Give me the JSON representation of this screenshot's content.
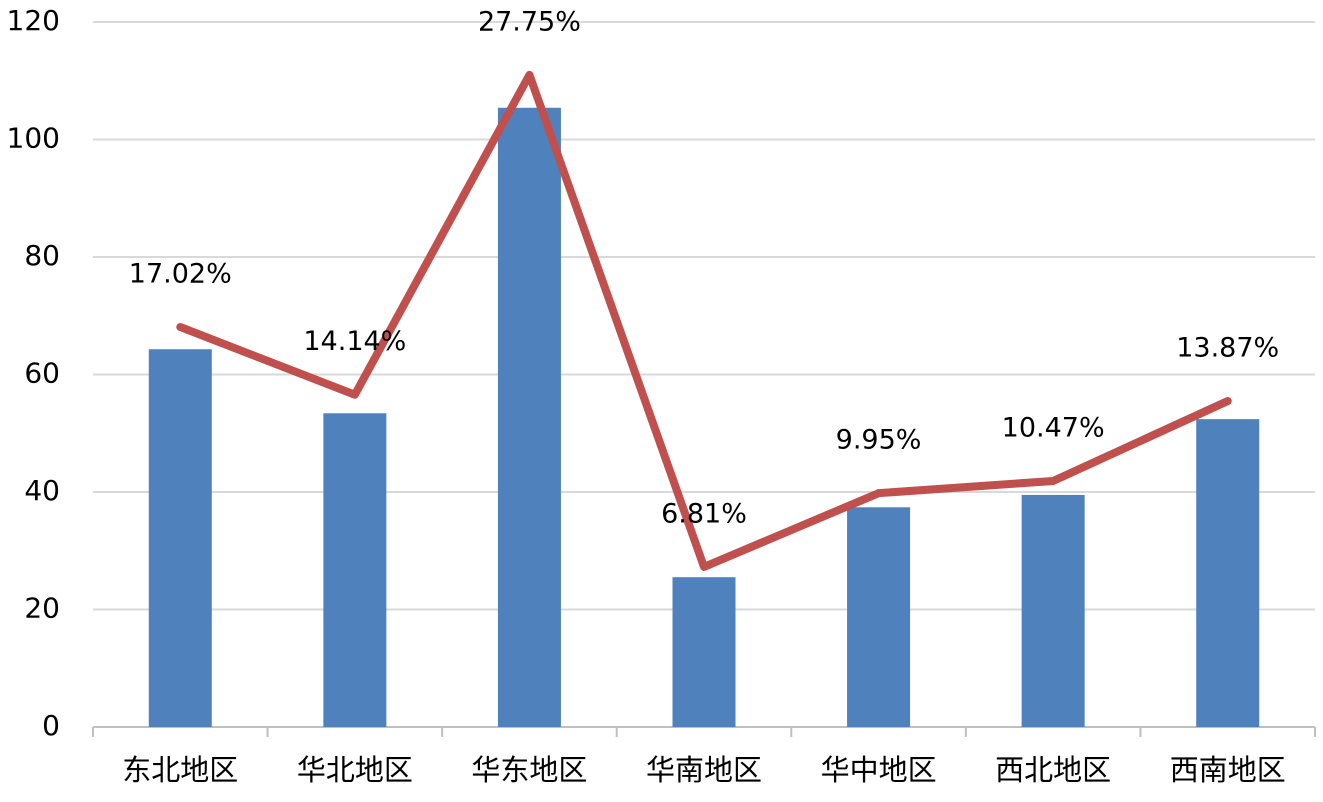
{
  "chart_data": {
    "type": "bar-line",
    "categories": [
      "东北地区",
      "华北地区",
      "华东地区",
      "华南地区",
      "华中地区",
      "西北地区",
      "西南地区"
    ],
    "series": [
      {
        "type": "bar",
        "color": "#4f81bd",
        "values": [
          64.3,
          53.4,
          105.4,
          25.5,
          37.4,
          39.5,
          52.4
        ]
      },
      {
        "type": "line",
        "color": "#c0504d",
        "axis": "y2",
        "values": [
          17.02,
          14.14,
          27.75,
          6.81,
          9.95,
          10.47,
          13.87
        ],
        "value_labels": [
          "17.02%",
          "14.14%",
          "27.75%",
          "6.81%",
          "9.95%",
          "10.47%",
          "13.87%"
        ]
      }
    ],
    "ylim": [
      0,
      120
    ],
    "yticks": [
      0,
      20,
      40,
      60,
      80,
      100,
      120
    ],
    "y2lim": [
      0,
      30
    ],
    "grid": true
  }
}
